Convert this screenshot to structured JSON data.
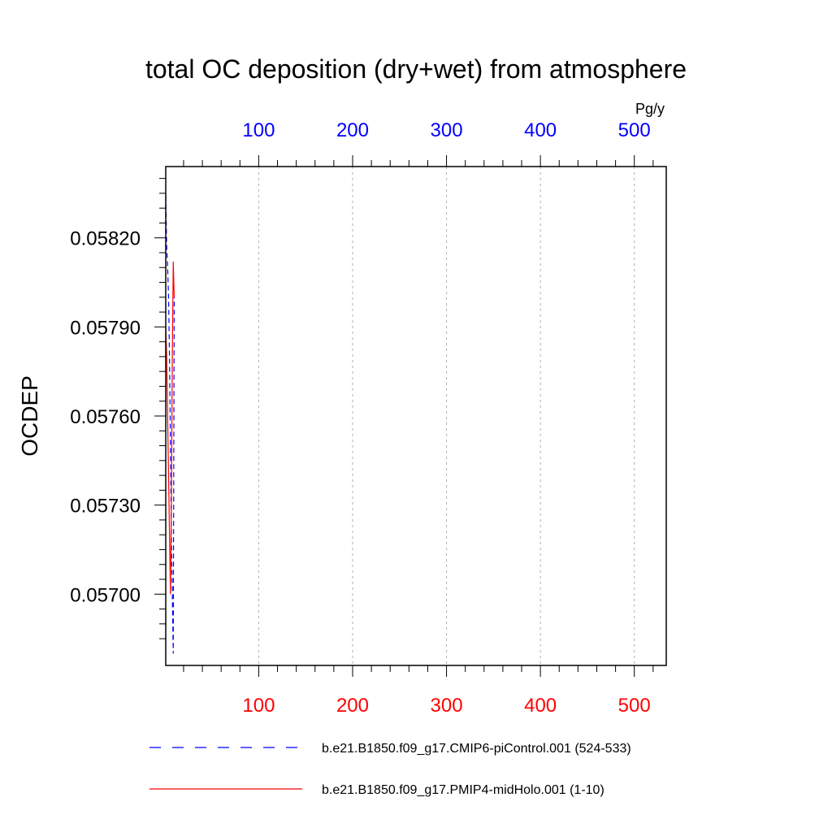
{
  "chart_data": {
    "type": "line",
    "title": "total OC deposition (dry+wet) from atmosphere",
    "ylabel": "OCDEP",
    "top_axis_unit": "Pg/y",
    "xlim": [
      1,
      534
    ],
    "ylim": [
      0.05676,
      0.05844
    ],
    "grid": "vertical dashed at x ticks",
    "colors": {
      "top_axis": "#0000ff",
      "bottom_axis": "#ff0000",
      "axis": "#000000"
    },
    "xticks_bottom": [
      "100",
      "200",
      "300",
      "400",
      "500"
    ],
    "xticks_top": [
      "100",
      "200",
      "300",
      "400",
      "500"
    ],
    "yticks": [
      "0.05700",
      "0.05730",
      "0.05760",
      "0.05790",
      "0.05820"
    ],
    "series": [
      {
        "name": "b.e21.B1850.f09_g17.CMIP6-piControl.001 (524-533)",
        "color": "#0000ff",
        "dash": "dashed",
        "axis": "top",
        "x": [
          1,
          2,
          3,
          4,
          5,
          6,
          7,
          8,
          9,
          10
        ],
        "y": [
          0.05834,
          0.05817,
          0.0581,
          0.058,
          0.0578,
          0.0575,
          0.05719,
          0.057,
          0.0568,
          0.058
        ]
      },
      {
        "name": "b.e21.B1850.f09_g17.PMIP4-midHolo.001 (1-10)",
        "color": "#ff0000",
        "dash": "solid",
        "axis": "bottom",
        "x": [
          1,
          2,
          3,
          4,
          5,
          6,
          7,
          8,
          9,
          10
        ],
        "y": [
          0.0579,
          0.0578,
          0.0576,
          0.0574,
          0.0572,
          0.057,
          0.0573,
          0.0578,
          0.05812,
          0.058
        ]
      }
    ]
  }
}
